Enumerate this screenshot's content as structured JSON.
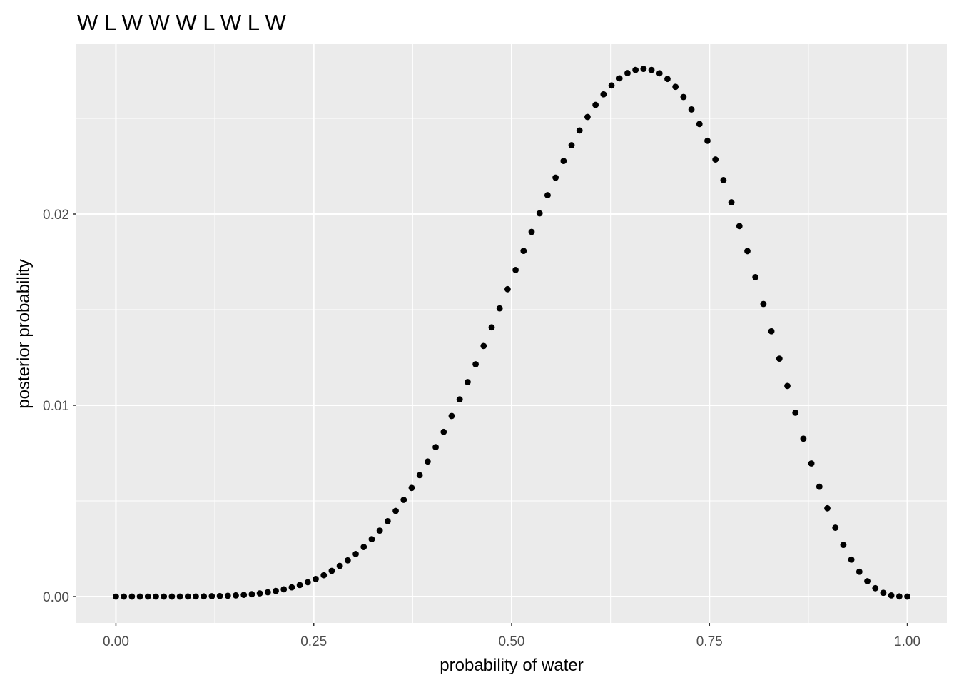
{
  "chart_data": {
    "type": "scatter",
    "title": "W L W W W L W L W",
    "xlabel": "probability of water",
    "ylabel": "posterior probability",
    "xlim": [
      -0.05,
      1.05
    ],
    "ylim": [
      -0.00138,
      0.02888
    ],
    "x_ticks": [
      0.0,
      0.25,
      0.5,
      0.75,
      1.0
    ],
    "x_tick_labels": [
      "0.00",
      "0.25",
      "0.50",
      "0.75",
      "1.00"
    ],
    "y_ticks": [
      0.0,
      0.01,
      0.02
    ],
    "y_tick_labels": [
      "0.00",
      "0.01",
      "0.02"
    ],
    "grid": true,
    "n_points": 100,
    "x_start": 0,
    "x_end": 1,
    "likelihood": {
      "water": 6,
      "land": 3
    },
    "prior": "uniform",
    "point_color": "#000000",
    "panel_color": "#ebebeb",
    "grid_color": "#ffffff"
  }
}
